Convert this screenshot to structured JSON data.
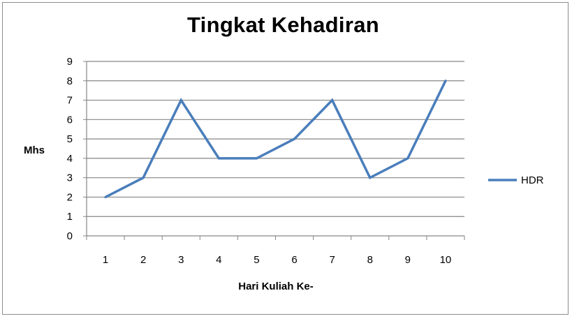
{
  "chart_data": {
    "type": "line",
    "title": "Tingkat Kehadiran",
    "xlabel": "Hari Kuliah  Ke-",
    "ylabel": "Mhs",
    "categories": [
      "1",
      "2",
      "3",
      "4",
      "5",
      "6",
      "7",
      "8",
      "9",
      "10"
    ],
    "series": [
      {
        "name": "HDR",
        "values": [
          2,
          3,
          7,
          4,
          4,
          5,
          7,
          3,
          4,
          8
        ],
        "color": "#4a7ebb"
      }
    ],
    "ylim": [
      0,
      9
    ],
    "yticks": [
      0,
      1,
      2,
      3,
      4,
      5,
      6,
      7,
      8,
      9
    ],
    "grid": true,
    "gridColor": "#868686",
    "legend": "right"
  }
}
